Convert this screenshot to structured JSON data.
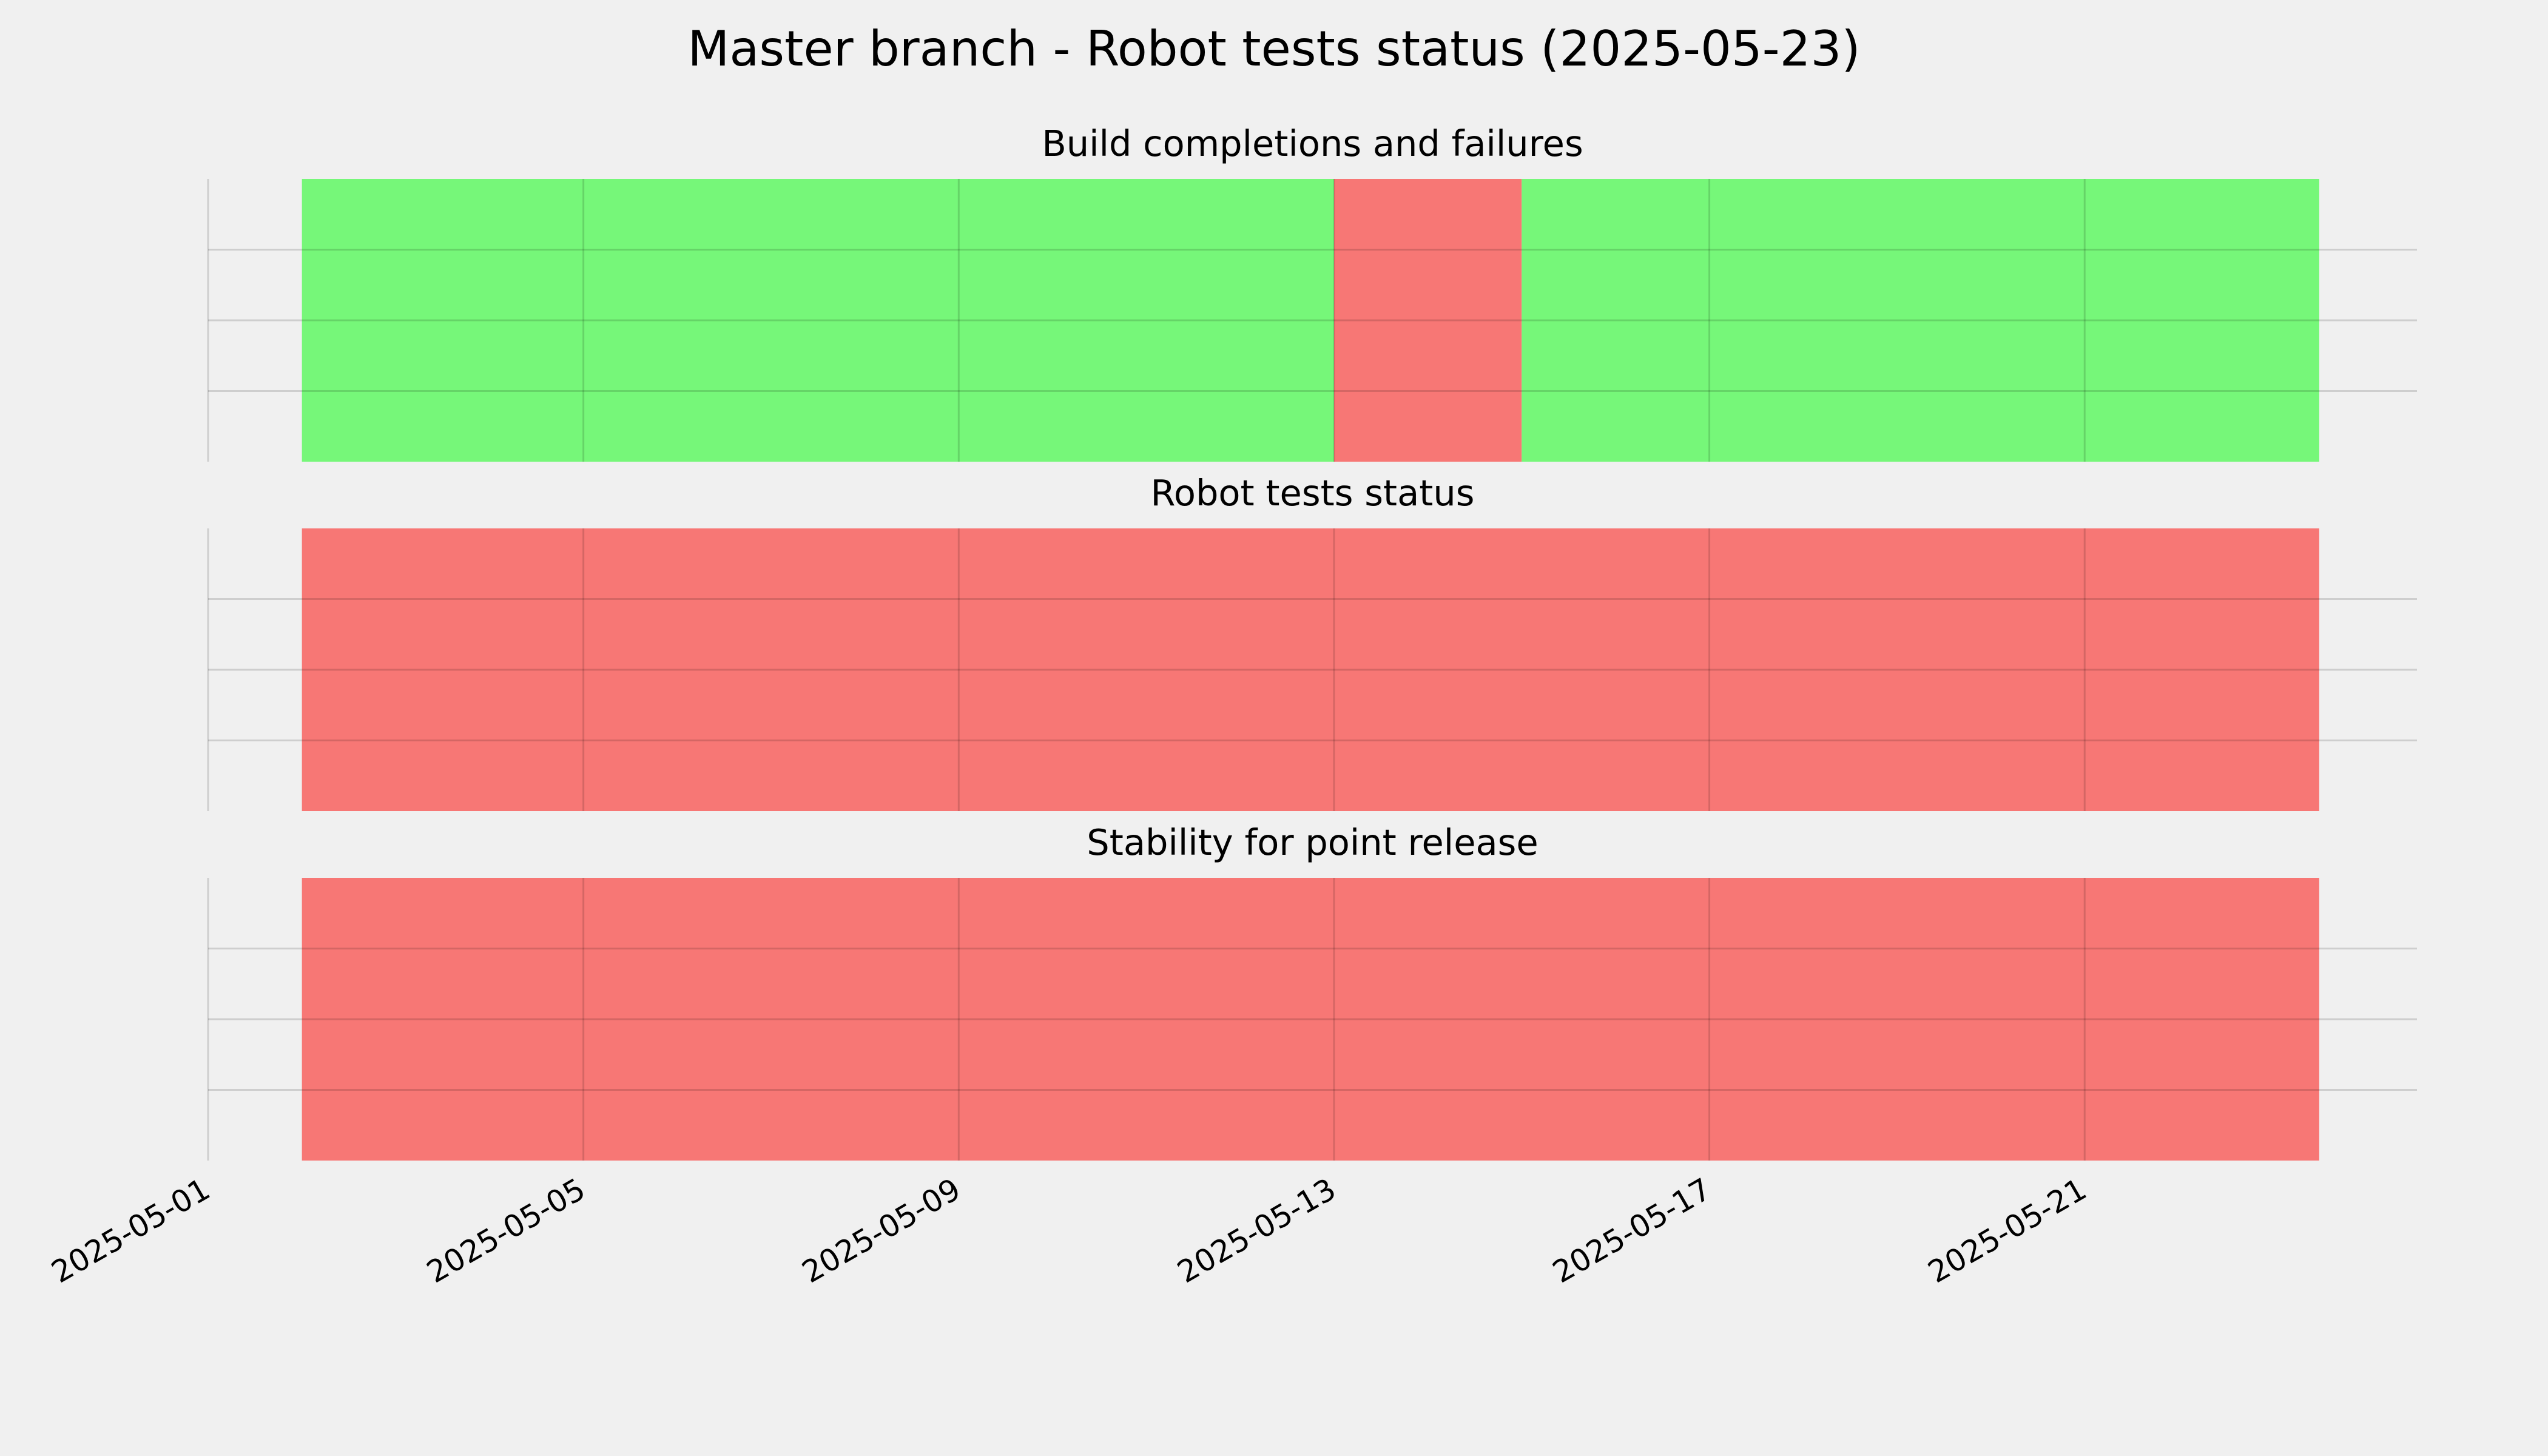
{
  "title": "Master branch - Robot tests status (2025-05-23)",
  "chart_data": [
    {
      "type": "timeline",
      "title": "Build completions and failures",
      "segments": [
        {
          "start": "2025-05-02",
          "end": "2025-05-13",
          "color": "#76f779"
        },
        {
          "start": "2025-05-13",
          "end": "2025-05-15",
          "color": "#f77775"
        },
        {
          "start": "2025-05-15",
          "end": "2025-05-23T12:00",
          "color": "#76f779"
        }
      ],
      "xlim": [
        "2025-05-01",
        "2025-05-24T13:00"
      ],
      "ylim": [
        0,
        4
      ],
      "yticks": [
        1,
        2,
        3
      ],
      "grid": true
    },
    {
      "type": "timeline",
      "title": "Robot tests status",
      "segments": [
        {
          "start": "2025-05-02",
          "end": "2025-05-23T12:00",
          "color": "#f77775"
        }
      ],
      "xlim": [
        "2025-05-01",
        "2025-05-24T13:00"
      ],
      "ylim": [
        0,
        4
      ],
      "yticks": [
        1,
        2,
        3
      ],
      "grid": true
    },
    {
      "type": "timeline",
      "title": "Stability for point release",
      "segments": [
        {
          "start": "2025-05-02",
          "end": "2025-05-23T12:00",
          "color": "#f77775"
        }
      ],
      "xlim": [
        "2025-05-01",
        "2025-05-24T13:00"
      ],
      "ylim": [
        0,
        4
      ],
      "yticks": [
        1,
        2,
        3
      ],
      "grid": true,
      "xticks": [
        "2025-05-01",
        "2025-05-05",
        "2025-05-09",
        "2025-05-13",
        "2025-05-17",
        "2025-05-21"
      ]
    }
  ]
}
